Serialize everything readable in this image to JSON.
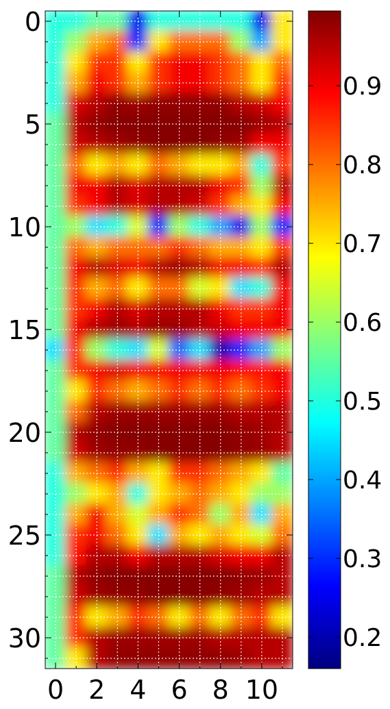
{
  "chart_data": {
    "type": "heatmap",
    "title": "",
    "xlabel": "",
    "ylabel": "",
    "rows": 32,
    "cols": 12,
    "x_ticks": [
      0,
      2,
      4,
      6,
      8,
      10
    ],
    "x_tick_labels": [
      "0",
      "2",
      "4",
      "6",
      "8",
      "10"
    ],
    "y_ticks": [
      0,
      5,
      10,
      15,
      20,
      25,
      30
    ],
    "y_tick_labels": [
      "0",
      "5",
      "10",
      "15",
      "20",
      "25",
      "30"
    ],
    "colorbar": {
      "vmin": 0.16,
      "vmax": 0.995,
      "colormap": "jet",
      "ticks": [
        0.2,
        0.3,
        0.4,
        0.5,
        0.6,
        0.7,
        0.8,
        0.9
      ],
      "tick_labels": [
        "0.2",
        "0.3",
        "0.4",
        "0.5",
        "0.6",
        "0.7",
        "0.8",
        "0.9"
      ]
    },
    "grid": true,
    "grid_style": "dotted-white",
    "interpolation": "smooth",
    "values": [
      [
        0.5,
        0.5,
        0.55,
        0.55,
        0.25,
        0.5,
        0.5,
        0.5,
        0.5,
        0.5,
        0.25,
        0.7
      ],
      [
        0.5,
        0.6,
        0.75,
        0.8,
        0.3,
        0.7,
        0.8,
        0.8,
        0.8,
        0.6,
        0.4,
        0.7
      ],
      [
        0.5,
        0.7,
        0.85,
        0.85,
        0.7,
        0.85,
        0.9,
        0.9,
        0.85,
        0.8,
        0.7,
        0.8
      ],
      [
        0.5,
        0.75,
        0.9,
        0.85,
        0.75,
        0.85,
        0.9,
        0.9,
        0.85,
        0.8,
        0.7,
        0.85
      ],
      [
        0.5,
        0.92,
        0.95,
        0.98,
        0.97,
        0.98,
        0.98,
        0.98,
        0.98,
        0.95,
        0.93,
        0.9
      ],
      [
        0.55,
        0.95,
        0.98,
        0.99,
        0.99,
        0.99,
        0.99,
        0.99,
        0.99,
        0.99,
        0.97,
        0.95
      ],
      [
        0.55,
        0.93,
        0.95,
        0.97,
        0.98,
        0.99,
        0.99,
        0.99,
        0.98,
        0.97,
        0.9,
        0.9
      ],
      [
        0.55,
        0.8,
        0.7,
        0.75,
        0.7,
        0.8,
        0.75,
        0.7,
        0.7,
        0.75,
        0.5,
        0.85
      ],
      [
        0.55,
        0.9,
        0.9,
        0.95,
        0.92,
        0.95,
        0.95,
        0.95,
        0.9,
        0.85,
        0.6,
        0.95
      ],
      [
        0.55,
        0.85,
        0.9,
        0.95,
        0.92,
        0.95,
        0.95,
        0.93,
        0.85,
        0.75,
        0.7,
        0.9
      ],
      [
        0.55,
        0.6,
        0.45,
        0.5,
        0.65,
        0.3,
        0.6,
        0.5,
        0.4,
        0.25,
        0.6,
        0.3
      ],
      [
        0.55,
        0.8,
        0.75,
        0.8,
        0.8,
        0.8,
        0.85,
        0.8,
        0.75,
        0.75,
        0.7,
        0.85
      ],
      [
        0.55,
        0.9,
        0.95,
        0.92,
        0.9,
        0.95,
        0.97,
        0.95,
        0.9,
        0.9,
        0.85,
        0.95
      ],
      [
        0.55,
        0.85,
        0.75,
        0.8,
        0.7,
        0.8,
        0.8,
        0.65,
        0.7,
        0.45,
        0.5,
        0.9
      ],
      [
        0.55,
        0.85,
        0.9,
        0.95,
        0.92,
        0.95,
        0.95,
        0.95,
        0.9,
        0.85,
        0.85,
        0.9
      ],
      [
        0.55,
        0.9,
        0.95,
        0.97,
        0.95,
        0.97,
        0.97,
        0.95,
        0.93,
        0.9,
        0.9,
        0.9
      ],
      [
        0.45,
        0.85,
        0.6,
        0.5,
        0.45,
        0.65,
        0.35,
        0.45,
        0.2,
        0.3,
        0.4,
        0.6
      ],
      [
        0.55,
        0.85,
        0.9,
        0.92,
        0.9,
        0.9,
        0.9,
        0.9,
        0.9,
        0.88,
        0.88,
        0.9
      ],
      [
        0.55,
        0.7,
        0.85,
        0.8,
        0.75,
        0.8,
        0.85,
        0.8,
        0.85,
        0.8,
        0.85,
        0.9
      ],
      [
        0.55,
        0.8,
        0.95,
        0.97,
        0.97,
        0.97,
        0.97,
        0.97,
        0.97,
        0.95,
        0.95,
        0.95
      ],
      [
        0.55,
        0.95,
        0.98,
        0.99,
        0.99,
        0.99,
        0.99,
        0.99,
        0.99,
        0.98,
        0.97,
        0.95
      ],
      [
        0.55,
        0.93,
        0.97,
        0.98,
        0.98,
        0.99,
        0.99,
        0.99,
        0.99,
        0.98,
        0.97,
        0.95
      ],
      [
        0.5,
        0.75,
        0.8,
        0.85,
        0.75,
        0.7,
        0.85,
        0.85,
        0.8,
        0.75,
        0.7,
        0.55
      ],
      [
        0.5,
        0.6,
        0.7,
        0.75,
        0.5,
        0.7,
        0.75,
        0.8,
        0.75,
        0.7,
        0.6,
        0.6
      ],
      [
        0.5,
        0.75,
        0.9,
        0.75,
        0.65,
        0.75,
        0.85,
        0.8,
        0.6,
        0.75,
        0.45,
        0.75
      ],
      [
        0.5,
        0.85,
        0.9,
        0.8,
        0.7,
        0.45,
        0.75,
        0.7,
        0.75,
        0.7,
        0.65,
        0.8
      ],
      [
        0.5,
        0.88,
        0.95,
        0.95,
        0.9,
        0.95,
        0.95,
        0.95,
        0.92,
        0.9,
        0.9,
        0.95
      ],
      [
        0.55,
        0.95,
        0.98,
        0.99,
        0.99,
        0.99,
        0.99,
        0.99,
        0.99,
        0.98,
        0.97,
        0.95
      ],
      [
        0.55,
        0.93,
        0.97,
        0.98,
        0.98,
        0.99,
        0.99,
        0.99,
        0.98,
        0.97,
        0.95,
        0.95
      ],
      [
        0.55,
        0.85,
        0.7,
        0.75,
        0.85,
        0.8,
        0.7,
        0.8,
        0.7,
        0.8,
        0.85,
        0.7
      ],
      [
        0.55,
        0.85,
        0.95,
        0.97,
        0.97,
        0.97,
        0.97,
        0.97,
        0.95,
        0.95,
        0.95,
        0.95
      ],
      [
        0.55,
        0.7,
        0.95,
        0.98,
        0.98,
        0.98,
        0.98,
        0.98,
        0.98,
        0.97,
        0.95,
        0.95
      ]
    ]
  }
}
